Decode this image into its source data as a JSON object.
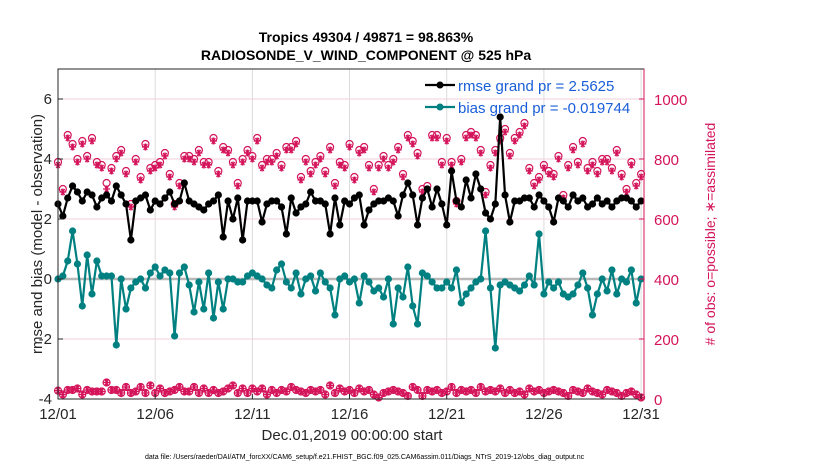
{
  "chart_data": {
    "type": "line",
    "title": [
      "Tropics 49304 / 49871 = 98.863%",
      "RADIOSONDE_V_WIND_COMPONENT @ 525 hPa"
    ],
    "xlabel": "Dec.01,2019 00:00:00 start",
    "ylabel": "rmse and bias (model - observation)",
    "y2label": "# of obs: o=possible; ∗=assimilated",
    "footnote": "data file: /Users/raeder/DAI/ATM_forcXX/CAM6_setup/f.e21.FHIST_BGC.f09_025.CAM6assim.011/Diags_NTrS_2019-12/obs_diag_output.nc",
    "x_ticks": [
      "12/01",
      "12/06",
      "12/11",
      "12/16",
      "12/21",
      "12/26",
      "12/31"
    ],
    "x_tick_days": [
      0,
      5,
      10,
      15,
      20,
      25,
      30
    ],
    "xlim_days": [
      0,
      30.15
    ],
    "time_step_days": 0.25,
    "ylim": [
      -4,
      7
    ],
    "y_ticks": [
      -4,
      -2,
      0,
      2,
      4,
      6
    ],
    "y2lim": [
      0,
      1100
    ],
    "y2_ticks": [
      0,
      200,
      400,
      600,
      800,
      1000
    ],
    "grid": true,
    "legend_position": "top-right",
    "series": [
      {
        "name": "rmse",
        "legend": "rmse grand pr = 2.5625",
        "color": "#000000",
        "values": [
          2.5,
          2.1,
          2.7,
          3.1,
          2.9,
          2.6,
          2.9,
          2.8,
          2.4,
          2.7,
          2.8,
          2.6,
          3.1,
          2.8,
          2.5,
          1.3,
          2.6,
          2.7,
          2.8,
          2.3,
          2.6,
          2.5,
          2.7,
          2.9,
          2.5,
          2.6,
          3.2,
          2.6,
          2.5,
          2.4,
          2.3,
          2.5,
          2.6,
          2.8,
          1.4,
          2.6,
          2.0,
          2.7,
          1.3,
          2.6,
          2.6,
          2.6,
          1.9,
          2.5,
          2.6,
          2.6,
          2.4,
          1.5,
          2.7,
          2.2,
          2.4,
          2.5,
          2.9,
          2.6,
          2.6,
          2.5,
          1.5,
          2.7,
          1.8,
          2.6,
          2.5,
          2.7,
          2.8,
          1.8,
          2.3,
          2.5,
          2.6,
          2.6,
          2.7,
          2.6,
          2.1,
          2.8,
          3.2,
          2.8,
          1.8,
          2.7,
          3.0,
          2.4,
          3.0,
          2.5,
          1.8,
          3.6,
          2.6,
          2.4,
          3.3,
          2.7,
          3.5,
          3.0,
          2.2,
          2.0,
          2.5,
          5.4,
          2.8,
          1.9,
          2.6,
          2.6,
          2.7,
          2.7,
          2.4,
          2.8,
          2.6,
          2.4,
          1.9,
          2.7,
          2.6,
          2.4,
          2.8,
          2.6,
          2.7,
          2.4,
          2.5,
          2.7,
          2.5,
          2.6,
          2.4,
          2.6,
          2.7,
          2.7,
          2.6,
          2.4,
          2.6
        ]
      },
      {
        "name": "bias",
        "legend": "bias grand pr = -0.019744",
        "color": "#008080",
        "values": [
          0.0,
          0.1,
          0.6,
          1.6,
          0.5,
          -0.9,
          0.8,
          -0.5,
          0.6,
          0.1,
          0.1,
          0.1,
          -2.2,
          0.0,
          -1.0,
          -0.3,
          -0.1,
          0.0,
          -0.3,
          0.2,
          0.4,
          0.1,
          0.3,
          0.2,
          -1.9,
          0.2,
          0.4,
          -0.2,
          -1.1,
          -0.1,
          -1.0,
          0.2,
          -1.3,
          -0.1,
          -1.0,
          0.0,
          0.0,
          -0.1,
          -0.1,
          0.1,
          0.2,
          0.1,
          0.0,
          -0.2,
          -0.3,
          0.3,
          0.5,
          -0.1,
          -0.3,
          0.2,
          -0.5,
          0.0,
          0.1,
          -0.4,
          0.2,
          -0.1,
          -0.3,
          -1.2,
          0.0,
          0.1,
          -0.1,
          0.0,
          -0.8,
          0.1,
          -0.1,
          -0.4,
          -0.3,
          -0.6,
          0.0,
          -1.5,
          -0.3,
          -0.6,
          0.4,
          -0.9,
          -1.5,
          0.2,
          0.1,
          -0.1,
          -0.3,
          -0.3,
          -0.1,
          -0.3,
          0.3,
          -0.8,
          -0.5,
          -0.3,
          -0.1,
          0.0,
          1.6,
          -0.3,
          -2.3,
          -0.2,
          -0.1,
          -0.2,
          -0.3,
          -0.4,
          -0.2,
          0.1,
          -0.2,
          1.5,
          -0.5,
          -0.1,
          -0.3,
          -0.1,
          -0.5,
          -0.6,
          -0.5,
          -0.2,
          0.2,
          -0.3,
          -1.2,
          -0.5,
          0.0,
          -0.4,
          0.3,
          -0.5,
          0.0,
          -0.1,
          0.3,
          -0.8,
          0.0
        ]
      }
    ],
    "obs_possible_upper": [
      790,
      700,
      880,
      850,
      800,
      860,
      810,
      870,
      790,
      780,
      720,
      770,
      810,
      830,
      760,
      650,
      800,
      740,
      850,
      770,
      780,
      790,
      820,
      750,
      650,
      720,
      810,
      810,
      800,
      830,
      790,
      790,
      870,
      760,
      840,
      830,
      790,
      720,
      800,
      830,
      810,
      870,
      780,
      800,
      800,
      820,
      780,
      840,
      840,
      860,
      740,
      800,
      760,
      790,
      810,
      760,
      840,
      720,
      790,
      780,
      850,
      740,
      830,
      840,
      780,
      700,
      780,
      810,
      780,
      800,
      840,
      750,
      880,
      860,
      820,
      700,
      710,
      880,
      880,
      790,
      870,
      790,
      660,
      800,
      880,
      890,
      880,
      830,
      690,
      780,
      830,
      870,
      900,
      820,
      870,
      890,
      920,
      770,
      720,
      740,
      780,
      760,
      750,
      810,
      680,
      780,
      840,
      790,
      860,
      770,
      790,
      760,
      800,
      800,
      770,
      830,
      750,
      700,
      790,
      720,
      750
    ],
    "obs_assimilated_upper": [
      780,
      690,
      870,
      840,
      790,
      850,
      800,
      860,
      780,
      770,
      700,
      760,
      800,
      820,
      750,
      640,
      790,
      730,
      840,
      760,
      770,
      780,
      810,
      740,
      640,
      710,
      800,
      800,
      790,
      820,
      780,
      780,
      860,
      750,
      830,
      820,
      780,
      710,
      790,
      820,
      800,
      860,
      770,
      790,
      790,
      810,
      770,
      830,
      830,
      850,
      730,
      790,
      750,
      780,
      800,
      750,
      830,
      710,
      780,
      770,
      840,
      730,
      820,
      830,
      770,
      690,
      770,
      800,
      770,
      790,
      830,
      740,
      870,
      850,
      810,
      690,
      700,
      870,
      870,
      780,
      860,
      780,
      650,
      790,
      870,
      880,
      870,
      820,
      680,
      770,
      820,
      860,
      890,
      810,
      860,
      880,
      910,
      760,
      710,
      730,
      770,
      750,
      740,
      800,
      670,
      770,
      830,
      780,
      850,
      760,
      780,
      750,
      790,
      790,
      760,
      820,
      740,
      690,
      780,
      710,
      740
    ],
    "obs_lower": [
      28,
      15,
      30,
      30,
      35,
      15,
      30,
      25,
      25,
      25,
      55,
      30,
      30,
      20,
      40,
      20,
      25,
      40,
      20,
      45,
      20,
      35,
      20,
      25,
      30,
      40,
      25,
      25,
      40,
      20,
      35,
      20,
      30,
      20,
      25,
      35,
      45,
      20,
      35,
      20,
      35,
      25,
      35,
      15,
      30,
      20,
      30,
      25,
      40,
      30,
      25,
      20,
      30,
      25,
      30,
      15,
      45,
      20,
      35,
      25,
      30,
      20,
      35,
      25,
      30,
      15,
      5,
      20,
      25,
      30,
      25,
      20,
      10,
      40,
      30,
      10,
      30,
      25,
      30,
      20,
      25,
      40,
      20,
      30,
      25,
      30,
      20,
      40,
      25,
      30,
      25,
      35,
      20,
      30,
      20,
      25,
      15,
      35,
      25,
      30,
      20,
      25,
      30,
      25,
      20,
      10,
      30,
      25,
      20,
      35,
      25,
      20,
      15,
      30,
      25,
      20,
      10,
      20,
      25,
      15,
      5
    ]
  }
}
